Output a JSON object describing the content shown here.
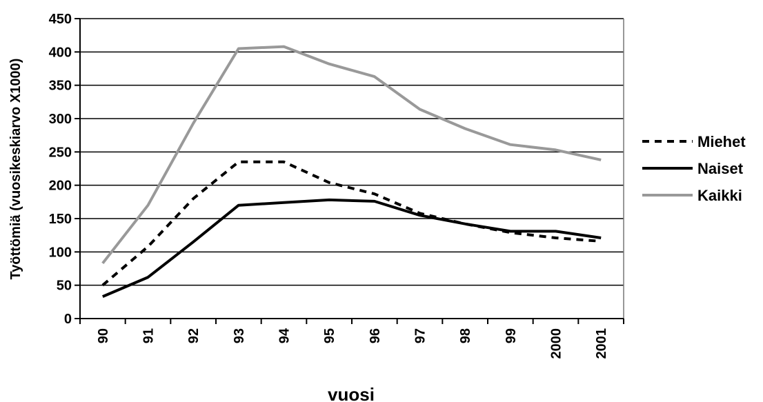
{
  "chart_data": {
    "type": "line",
    "title": "",
    "xlabel": "vuosi",
    "ylabel": "Työttömiä (vuosikeskiarvo X1000)",
    "ylim": [
      0,
      450
    ],
    "yticks": [
      0,
      50,
      100,
      150,
      200,
      250,
      300,
      350,
      400,
      450
    ],
    "grid": true,
    "legend_position": "right",
    "categories": [
      "90",
      "91",
      "92",
      "93",
      "94",
      "95",
      "96",
      "97",
      "98",
      "99",
      "2000",
      "2001"
    ],
    "series": [
      {
        "name": "Miehet",
        "color": "#000000",
        "style": "dashed",
        "values": [
          50,
          108,
          180,
          235,
          235,
          204,
          187,
          158,
          142,
          129,
          121,
          116
        ]
      },
      {
        "name": "Naiset",
        "color": "#000000",
        "style": "solid",
        "values": [
          33,
          62,
          115,
          170,
          174,
          178,
          176,
          155,
          142,
          131,
          131,
          121
        ]
      },
      {
        "name": "Kaikki",
        "color": "#999999",
        "style": "solid",
        "values": [
          83,
          170,
          293,
          405,
          408,
          382,
          363,
          314,
          285,
          261,
          253,
          238
        ]
      }
    ]
  }
}
